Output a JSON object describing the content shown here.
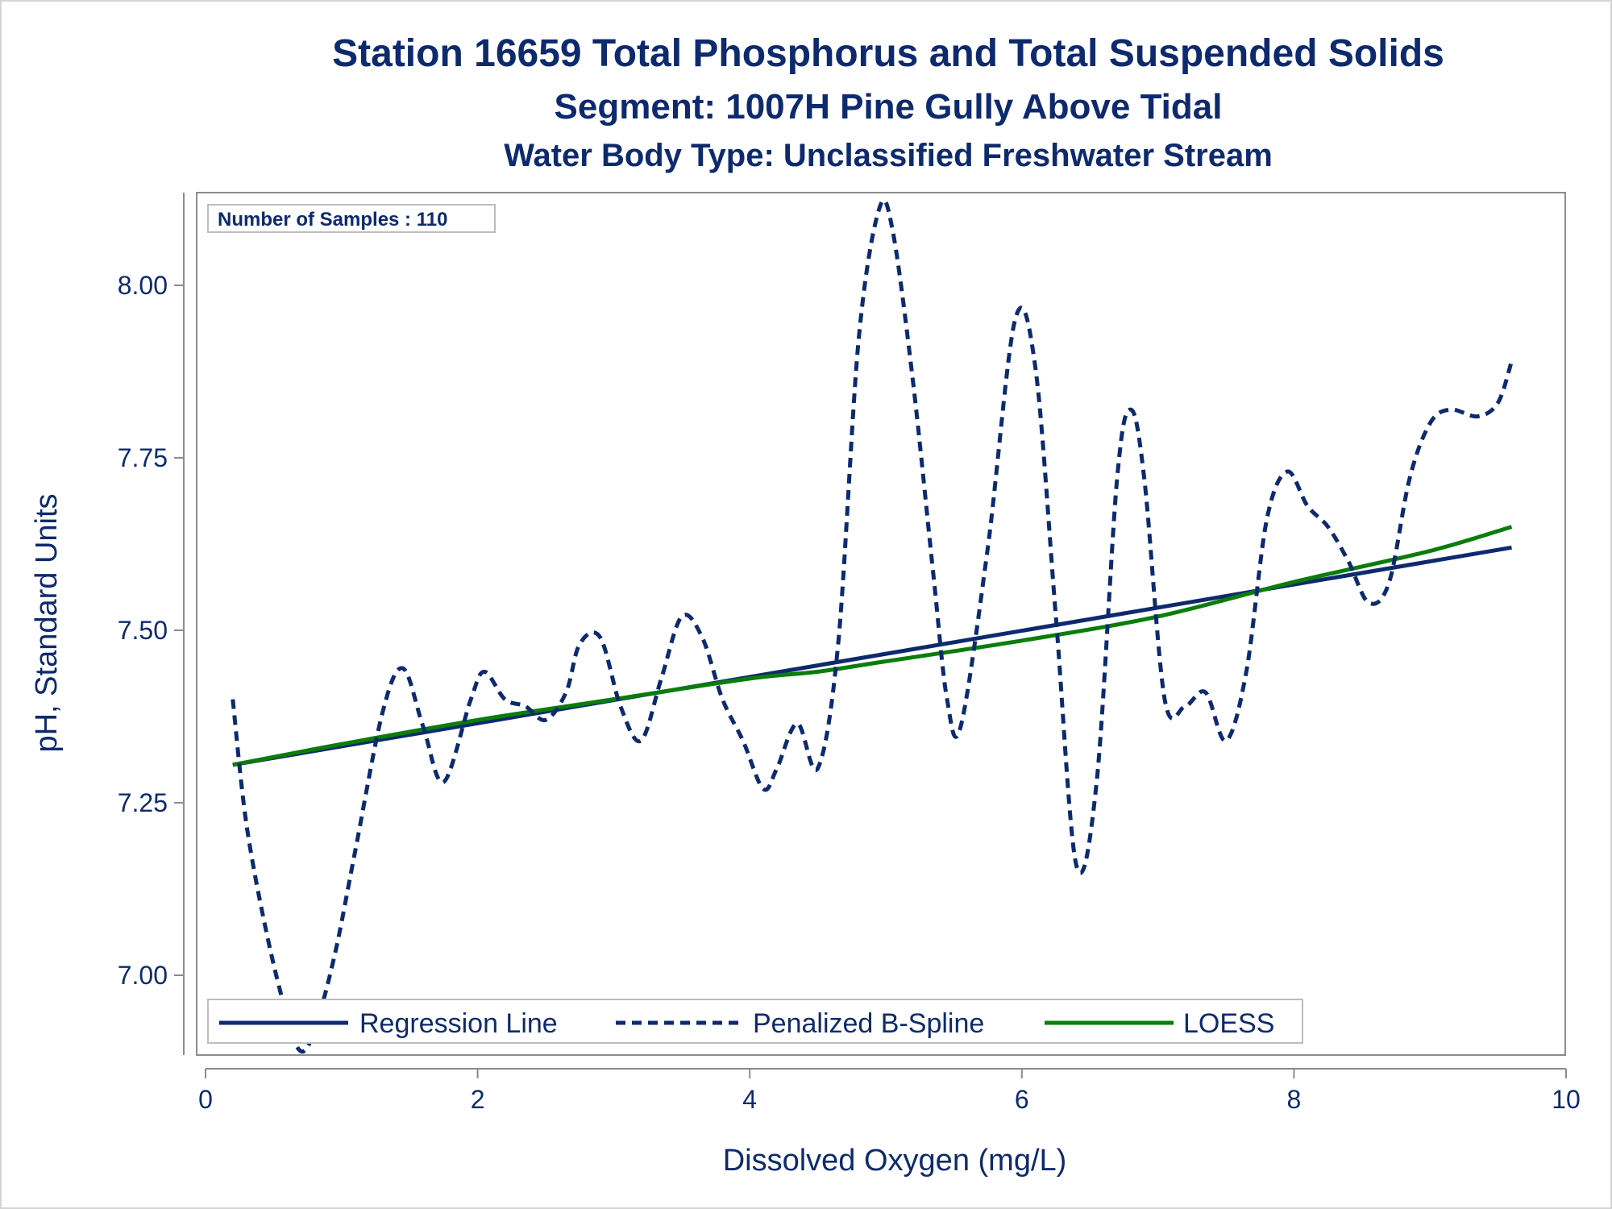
{
  "chart_data": {
    "type": "line",
    "title": "Station 16659  Total Phosphorus and Total Suspended Solids",
    "subtitle": "Segment: 1007H  Pine Gully Above Tidal",
    "subtitle2": "Water Body Type: Unclassified Freshwater Stream",
    "xlabel": "Dissolved Oxygen (mg/L)",
    "ylabel": "pH, Standard Units",
    "xlim": [
      0,
      10
    ],
    "ylim": [
      6.88,
      8.13
    ],
    "x_ticks": [
      0,
      2,
      4,
      6,
      8,
      10
    ],
    "x_tick_labels": [
      "0",
      "2",
      "4",
      "6",
      "8",
      "10"
    ],
    "y_ticks": [
      7.0,
      7.25,
      7.5,
      7.75,
      8.0
    ],
    "y_tick_labels": [
      "7.00",
      "7.25",
      "7.50",
      "7.75",
      "8.00"
    ],
    "grid": false,
    "legend_position": "bottom-inside",
    "inset_label": "Number of Samples : 110",
    "colors": {
      "navy": "#0e2a6e",
      "green": "#0a7d0a",
      "frame": "#8c8c8c"
    },
    "series": [
      {
        "name": "Regression Line",
        "style": "solid",
        "color": "#0e2a6e",
        "x": [
          0.2,
          9.6
        ],
        "y": [
          7.305,
          7.62
        ]
      },
      {
        "name": "Penalized B-Spline",
        "style": "dashed",
        "color": "#0e2a6e",
        "x": [
          0.2,
          0.3,
          0.45,
          0.6,
          0.7,
          0.8,
          0.95,
          1.1,
          1.3,
          1.45,
          1.6,
          1.75,
          1.95,
          2.05,
          2.2,
          2.35,
          2.5,
          2.65,
          2.75,
          2.9,
          3.05,
          3.2,
          3.35,
          3.5,
          3.65,
          3.8,
          3.95,
          4.1,
          4.2,
          4.35,
          4.5,
          4.65,
          4.8,
          4.95,
          5.05,
          5.2,
          5.35,
          5.45,
          5.55,
          5.75,
          5.95,
          6.1,
          6.25,
          6.4,
          6.55,
          6.7,
          6.8,
          6.9,
          7.05,
          7.2,
          7.35,
          7.5,
          7.65,
          7.8,
          7.95,
          8.1,
          8.25,
          8.4,
          8.55,
          8.7,
          8.85,
          9.0,
          9.15,
          9.35,
          9.5,
          9.6
        ],
        "y": [
          7.4,
          7.22,
          7.06,
          6.94,
          6.89,
          6.92,
          7.03,
          7.18,
          7.38,
          7.445,
          7.36,
          7.28,
          7.4,
          7.44,
          7.4,
          7.39,
          7.37,
          7.41,
          7.48,
          7.49,
          7.39,
          7.34,
          7.43,
          7.52,
          7.49,
          7.4,
          7.34,
          7.27,
          7.3,
          7.365,
          7.3,
          7.48,
          7.92,
          8.11,
          8.08,
          7.86,
          7.58,
          7.4,
          7.36,
          7.62,
          7.95,
          7.88,
          7.52,
          7.16,
          7.28,
          7.72,
          7.82,
          7.72,
          7.4,
          7.39,
          7.41,
          7.34,
          7.44,
          7.66,
          7.73,
          7.68,
          7.65,
          7.6,
          7.54,
          7.57,
          7.72,
          7.8,
          7.82,
          7.81,
          7.83,
          7.89
        ]
      },
      {
        "name": "LOESS",
        "style": "solid",
        "color": "#0a7d0a",
        "x": [
          0.2,
          1.0,
          2.0,
          3.0,
          4.0,
          4.5,
          5.0,
          6.0,
          7.0,
          8.0,
          9.0,
          9.6
        ],
        "y": [
          7.305,
          7.335,
          7.37,
          7.4,
          7.43,
          7.44,
          7.455,
          7.485,
          7.52,
          7.57,
          7.615,
          7.65
        ]
      }
    ]
  }
}
